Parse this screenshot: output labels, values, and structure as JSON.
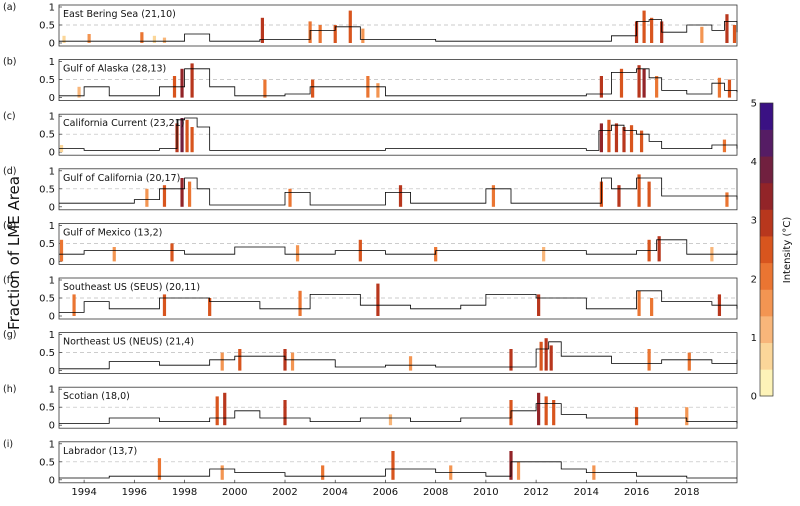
{
  "figure": {
    "ylabel": "Fraction of LME Area",
    "colorbar": {
      "label": "Intensity (°C)",
      "range": [
        0,
        5
      ],
      "ticks": [
        "0",
        "1",
        "2",
        "3",
        "4",
        "5"
      ],
      "colors": [
        "#fdf3b8",
        "#fbd699",
        "#f8b67a",
        "#f39552",
        "#ea7532",
        "#d8551e",
        "#b8371d",
        "#922428",
        "#71203f",
        "#551c64",
        "#3a1183"
      ]
    },
    "obs_line_color": "#000000"
  },
  "chart_data": [
    {
      "type": "bar",
      "panel": "(a)",
      "title": "East Bering Sea (21,10)",
      "ylim": [
        0,
        1
      ],
      "yticks": [
        "0",
        "0.5",
        "1"
      ],
      "xlim": [
        1993,
        2020
      ],
      "series": [
        {
          "name": "",
          "kind": "bar",
          "x": [
            1993.2,
            1994.2,
            1996.3,
            1996.8,
            1997.2,
            2001.1,
            2003.0,
            2003.4,
            2004.0,
            2004.6,
            2005.1,
            2016.0,
            2016.3,
            2016.6,
            2017.0,
            2018.6,
            2019.6,
            2019.9
          ],
          "y": [
            0.2,
            0.25,
            0.3,
            0.2,
            0.15,
            0.7,
            0.6,
            0.5,
            0.5,
            0.9,
            0.4,
            0.6,
            0.9,
            0.7,
            0.6,
            0.45,
            0.8,
            0.5
          ]
        },
        {
          "name": "",
          "kind": "line",
          "x": [
            1993,
            1996,
            1998,
            1999,
            2001,
            2003,
            2004,
            2005,
            2008,
            2011,
            2014,
            2015,
            2016,
            2016.5,
            2017,
            2018,
            2019,
            2019.5,
            2020
          ],
          "y": [
            0.05,
            0.05,
            0.25,
            0.05,
            0.1,
            0.35,
            0.45,
            0.1,
            0.05,
            0.05,
            0.05,
            0.2,
            0.6,
            0.65,
            0.3,
            0.5,
            0.35,
            0.6,
            0.3
          ]
        }
      ]
    },
    {
      "type": "bar",
      "panel": "(b)",
      "title": "Gulf of Alaska (28,13)",
      "ylim": [
        0,
        1
      ],
      "yticks": [
        "0",
        "0.5",
        "1"
      ],
      "xlim": [
        1993,
        2020
      ],
      "series": [
        {
          "name": "",
          "kind": "bar",
          "x": [
            1993.8,
            1997.6,
            1997.9,
            1998.3,
            2001.2,
            2003.1,
            2005.3,
            2005.7,
            2014.6,
            2015.4,
            2016.1,
            2016.3,
            2016.8,
            2019.3,
            2019.7
          ],
          "y": [
            0.3,
            0.6,
            0.8,
            0.95,
            0.5,
            0.5,
            0.6,
            0.4,
            0.6,
            0.8,
            0.9,
            0.8,
            0.6,
            0.55,
            0.5
          ]
        },
        {
          "name": "",
          "kind": "line",
          "x": [
            1993,
            1994,
            1995,
            1997,
            1998,
            1999,
            2000,
            2002,
            2003,
            2005,
            2006,
            2014,
            2015,
            2016,
            2016.5,
            2017,
            2018,
            2019,
            2019.5,
            2020
          ],
          "y": [
            0.05,
            0.3,
            0.05,
            0.3,
            0.8,
            0.3,
            0.05,
            0.1,
            0.3,
            0.3,
            0.05,
            0.1,
            0.7,
            0.8,
            0.55,
            0.2,
            0.1,
            0.4,
            0.2,
            0.15
          ]
        }
      ]
    },
    {
      "type": "bar",
      "panel": "(c)",
      "title": "California Current (23,21)",
      "ylim": [
        0,
        1
      ],
      "yticks": [
        "0",
        "0.5",
        "1"
      ],
      "xlim": [
        1993,
        2020
      ],
      "series": [
        {
          "name": "",
          "kind": "bar",
          "x": [
            1993.1,
            1997.7,
            1997.9,
            1998.1,
            1998.3,
            2014.6,
            2014.9,
            2015.2,
            2015.5,
            2015.8,
            2016.2,
            2019.5
          ],
          "y": [
            0.2,
            0.8,
            0.95,
            0.9,
            0.7,
            0.8,
            0.9,
            0.8,
            0.7,
            0.75,
            0.6,
            0.35
          ]
        },
        {
          "name": "",
          "kind": "line",
          "x": [
            1993,
            1994,
            1997,
            1997.7,
            1998,
            1998.5,
            1999,
            2002,
            2006,
            2010,
            2014,
            2014.5,
            2015,
            2015.5,
            2016,
            2016.5,
            2017,
            2019,
            2020
          ],
          "y": [
            0.1,
            0.05,
            0.1,
            0.9,
            0.95,
            0.7,
            0.05,
            0.05,
            0.1,
            0.1,
            0.05,
            0.6,
            0.75,
            0.6,
            0.5,
            0.3,
            0.1,
            0.2,
            0.1
          ]
        }
      ]
    },
    {
      "type": "bar",
      "panel": "(d)",
      "title": "Gulf of California (20,17)",
      "ylim": [
        0,
        1
      ],
      "yticks": [
        "0",
        "0.5",
        "1"
      ],
      "xlim": [
        1993,
        2020
      ],
      "series": [
        {
          "name": "",
          "kind": "bar",
          "x": [
            1996.5,
            1997.2,
            1997.9,
            1998.2,
            2002.2,
            2006.6,
            2010.3,
            2014.6,
            2015.3,
            2016.1,
            2016.5,
            2019.6
          ],
          "y": [
            0.5,
            0.6,
            0.8,
            0.7,
            0.5,
            0.6,
            0.6,
            0.7,
            0.6,
            0.9,
            0.7,
            0.4
          ]
        },
        {
          "name": "",
          "kind": "line",
          "x": [
            1993,
            1996,
            1997,
            1998,
            1998.5,
            1999,
            2002,
            2003,
            2006,
            2007,
            2010,
            2011,
            2014,
            2014.6,
            2015,
            2016,
            2017,
            2019,
            2020
          ],
          "y": [
            0.1,
            0.2,
            0.5,
            0.8,
            0.5,
            0.05,
            0.4,
            0.05,
            0.4,
            0.1,
            0.5,
            0.1,
            0.1,
            0.8,
            0.5,
            0.8,
            0.3,
            0.3,
            0.2
          ]
        }
      ]
    },
    {
      "type": "bar",
      "panel": "(e)",
      "title": "Gulf of Mexico (13,2)",
      "ylim": [
        0,
        1
      ],
      "yticks": [
        "0",
        "0.5",
        "1"
      ],
      "xlim": [
        1993,
        2020
      ],
      "series": [
        {
          "name": "",
          "kind": "bar",
          "x": [
            1993.1,
            1995.2,
            1997.5,
            2002.5,
            2005.0,
            2008.0,
            2012.3,
            2016.5,
            2016.9,
            2019.0
          ],
          "y": [
            0.6,
            0.4,
            0.5,
            0.45,
            0.6,
            0.4,
            0.4,
            0.6,
            0.7,
            0.4
          ]
        },
        {
          "name": "",
          "kind": "line",
          "x": [
            1993,
            1994,
            1996,
            1998,
            2000,
            2002,
            2004,
            2006,
            2008,
            2010,
            2012,
            2014,
            2016,
            2016.8,
            2018,
            2020
          ],
          "y": [
            0.2,
            0.3,
            0.3,
            0.2,
            0.4,
            0.2,
            0.3,
            0.2,
            0.3,
            0.3,
            0.3,
            0.2,
            0.3,
            0.6,
            0.2,
            0.3
          ]
        }
      ]
    },
    {
      "type": "bar",
      "panel": "(f)",
      "title": "Southeast US (SEUS) (20,11)",
      "ylim": [
        0,
        1
      ],
      "yticks": [
        "0",
        "0.5",
        "1"
      ],
      "xlim": [
        1993,
        2020
      ],
      "series": [
        {
          "name": "",
          "kind": "bar",
          "x": [
            1993.6,
            1997.2,
            1999.0,
            2002.6,
            2005.7,
            2012.1,
            2016.1,
            2016.6,
            2019.3
          ],
          "y": [
            0.6,
            0.6,
            0.5,
            0.7,
            0.9,
            0.6,
            0.7,
            0.5,
            0.6
          ]
        },
        {
          "name": "",
          "kind": "line",
          "x": [
            1993,
            1994,
            1995,
            1997,
            1999,
            2001,
            2003,
            2005,
            2007,
            2009,
            2010,
            2012,
            2014,
            2016,
            2017,
            2019,
            2020
          ],
          "y": [
            0.1,
            0.4,
            0.2,
            0.5,
            0.4,
            0.2,
            0.6,
            0.3,
            0.2,
            0.3,
            0.6,
            0.5,
            0.2,
            0.7,
            0.4,
            0.3,
            0.2
          ]
        }
      ]
    },
    {
      "type": "bar",
      "panel": "(g)",
      "title": "Northeast US (NEUS) (21,4)",
      "ylim": [
        0,
        1
      ],
      "yticks": [
        "0",
        "0.5",
        "1"
      ],
      "xlim": [
        1993,
        2020
      ],
      "series": [
        {
          "name": "",
          "kind": "bar",
          "x": [
            1999.5,
            2000.2,
            2002.0,
            2002.3,
            2007.0,
            2011.0,
            2012.2,
            2012.4,
            2012.6,
            2016.5,
            2018.1
          ],
          "y": [
            0.5,
            0.6,
            0.6,
            0.5,
            0.4,
            0.6,
            0.8,
            0.9,
            0.7,
            0.6,
            0.5
          ]
        },
        {
          "name": "",
          "kind": "line",
          "x": [
            1993,
            1995,
            1997,
            1999,
            2000,
            2002,
            2004,
            2006,
            2008,
            2010,
            2012,
            2012.5,
            2013,
            2015,
            2017,
            2019,
            2020
          ],
          "y": [
            0.05,
            0.25,
            0.15,
            0.3,
            0.4,
            0.3,
            0.1,
            0.15,
            0.1,
            0.1,
            0.6,
            0.8,
            0.4,
            0.2,
            0.3,
            0.2,
            0.3
          ]
        }
      ]
    },
    {
      "type": "bar",
      "panel": "(h)",
      "title": "Scotian (18,0)",
      "ylim": [
        0,
        1
      ],
      "yticks": [
        "0",
        "0.5",
        "1"
      ],
      "xlim": [
        1993,
        2020
      ],
      "series": [
        {
          "name": "",
          "kind": "bar",
          "x": [
            1999.3,
            1999.6,
            2002.0,
            2006.2,
            2011.0,
            2012.1,
            2012.4,
            2012.7,
            2016.0,
            2018.0
          ],
          "y": [
            0.8,
            0.9,
            0.7,
            0.3,
            0.7,
            0.9,
            0.8,
            0.7,
            0.5,
            0.5
          ]
        },
        {
          "name": "",
          "kind": "line",
          "x": [
            1993,
            1995,
            1997,
            1999,
            2000,
            2001,
            2003,
            2005,
            2007,
            2009,
            2011,
            2012,
            2013,
            2014,
            2016,
            2018,
            2020
          ],
          "y": [
            0.05,
            0.2,
            0.1,
            0.2,
            0.4,
            0.2,
            0.1,
            0.2,
            0.1,
            0.2,
            0.4,
            0.6,
            0.3,
            0.2,
            0.2,
            0.1,
            0.05
          ]
        }
      ]
    },
    {
      "type": "bar",
      "panel": "(i)",
      "title": "Labrador (13,7)",
      "ylim": [
        0,
        1
      ],
      "yticks": [
        "0",
        "0.5",
        "1"
      ],
      "xlim": [
        1993,
        2020
      ],
      "series": [
        {
          "name": "",
          "kind": "bar",
          "x": [
            1997.0,
            1999.5,
            2003.5,
            2006.3,
            2008.6,
            2011.0,
            2011.3,
            2014.3
          ],
          "y": [
            0.6,
            0.4,
            0.4,
            0.8,
            0.4,
            0.8,
            0.5,
            0.4
          ]
        },
        {
          "name": "",
          "kind": "line",
          "x": [
            1993,
            1995,
            1997,
            1999,
            2000,
            2002,
            2004,
            2006,
            2008,
            2010,
            2011,
            2012,
            2013,
            2014,
            2016,
            2018,
            2020
          ],
          "y": [
            0.05,
            0.1,
            0.1,
            0.3,
            0.2,
            0.1,
            0.1,
            0.3,
            0.2,
            0.1,
            0.5,
            0.5,
            0.3,
            0.2,
            0.1,
            0.05,
            0.05
          ]
        }
      ]
    }
  ],
  "xaxis": {
    "ticks": [
      "1994",
      "1996",
      "1998",
      "2000",
      "2002",
      "2004",
      "2006",
      "2008",
      "2010",
      "2012",
      "2014",
      "2016",
      "2018"
    ],
    "tick_values": [
      1994,
      1996,
      1998,
      2000,
      2002,
      2004,
      2006,
      2008,
      2010,
      2012,
      2014,
      2016,
      2018
    ]
  }
}
